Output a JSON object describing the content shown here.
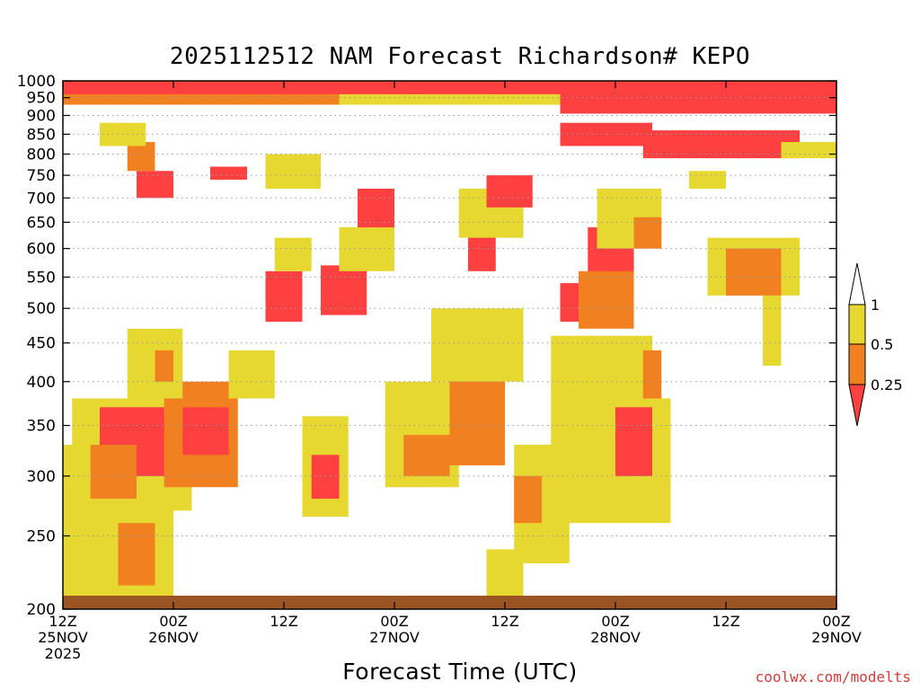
{
  "title": "2025112512 NAM Forecast Richardson# KEPO",
  "x_axis_title": "Forecast Time (UTC)",
  "credit": "coolwx.com/modelts",
  "colors": {
    "low": "#ff4040",
    "mid": "#f08020",
    "high": "#e6d830",
    "ground": "#9b5424",
    "grid": "#999999"
  },
  "chart_data": {
    "type": "heatmap",
    "title": "2025112512 NAM Forecast Richardson# KEPO",
    "xlabel": "Forecast Time (UTC)",
    "ylabel": "",
    "y_scale": "log",
    "y_inverted": true,
    "ylim": [
      1000,
      200
    ],
    "xlim": [
      "2025-11-25 12Z",
      "2025-11-29 00Z"
    ],
    "x_tick_labels": [
      {
        "line1": "12Z",
        "line2": "25NOV",
        "line3": "2025"
      },
      {
        "line1": "00Z",
        "line2": "26NOV",
        "line3": ""
      },
      {
        "line1": "12Z",
        "line2": "",
        "line3": ""
      },
      {
        "line1": "00Z",
        "line2": "27NOV",
        "line3": ""
      },
      {
        "line1": "12Z",
        "line2": "",
        "line3": ""
      },
      {
        "line1": "00Z",
        "line2": "28NOV",
        "line3": ""
      },
      {
        "line1": "12Z",
        "line2": "",
        "line3": ""
      },
      {
        "line1": "00Z",
        "line2": "29NOV",
        "line3": ""
      }
    ],
    "y_ticks": [
      200,
      250,
      300,
      350,
      400,
      450,
      500,
      550,
      600,
      650,
      700,
      750,
      800,
      850,
      900,
      950,
      1000
    ],
    "legend": {
      "bounds": [
        "0.25",
        "0.5",
        "1"
      ],
      "bins": [
        {
          "range": "< 0.25",
          "color_key": "low"
        },
        {
          "range": "0.25 - 0.5",
          "color_key": "mid"
        },
        {
          "range": "0.5 - 1",
          "color_key": "high"
        }
      ]
    },
    "hours": [
      0,
      3,
      6,
      9,
      12,
      15,
      18,
      21,
      24,
      27,
      30,
      33,
      36,
      39,
      42,
      45,
      48,
      51,
      54,
      57,
      60,
      63,
      66,
      69,
      72,
      75,
      78,
      81
    ],
    "regions": [
      {
        "cat": "high",
        "h": [
          0,
          12
        ],
        "p": [
          200,
          330
        ]
      },
      {
        "cat": "mid",
        "h": [
          6,
          10
        ],
        "p": [
          215,
          260
        ]
      },
      {
        "cat": "high",
        "h": [
          1,
          14
        ],
        "p": [
          270,
          380
        ]
      },
      {
        "cat": "low",
        "h": [
          4,
          15
        ],
        "p": [
          300,
          370
        ]
      },
      {
        "cat": "mid",
        "h": [
          3,
          8
        ],
        "p": [
          280,
          330
        ]
      },
      {
        "cat": "mid",
        "h": [
          11,
          19
        ],
        "p": [
          290,
          400
        ]
      },
      {
        "cat": "low",
        "h": [
          13,
          18
        ],
        "p": [
          320,
          370
        ]
      },
      {
        "cat": "high",
        "h": [
          7,
          13
        ],
        "p": [
          380,
          470
        ]
      },
      {
        "cat": "mid",
        "h": [
          10,
          12
        ],
        "p": [
          400,
          440
        ]
      },
      {
        "cat": "high",
        "h": [
          26,
          31
        ],
        "p": [
          265,
          360
        ]
      },
      {
        "cat": "low",
        "h": [
          27,
          30
        ],
        "p": [
          280,
          320
        ]
      },
      {
        "cat": "high",
        "h": [
          35,
          43
        ],
        "p": [
          290,
          400
        ]
      },
      {
        "cat": "mid",
        "h": [
          37,
          42
        ],
        "p": [
          300,
          340
        ]
      },
      {
        "cat": "high",
        "h": [
          46,
          50
        ],
        "p": [
          200,
          240
        ]
      },
      {
        "cat": "high",
        "h": [
          49,
          55
        ],
        "p": [
          230,
          330
        ]
      },
      {
        "cat": "mid",
        "h": [
          49,
          52
        ],
        "p": [
          260,
          300
        ]
      },
      {
        "cat": "high",
        "h": [
          53,
          64
        ],
        "p": [
          330,
          460
        ]
      },
      {
        "cat": "low",
        "h": [
          54,
          57
        ],
        "p": [
          480,
          540
        ]
      },
      {
        "cat": "low",
        "h": [
          57,
          62
        ],
        "p": [
          530,
          640
        ]
      },
      {
        "cat": "mid",
        "h": [
          56,
          62
        ],
        "p": [
          470,
          560
        ]
      },
      {
        "cat": "high",
        "h": [
          58,
          65
        ],
        "p": [
          600,
          720
        ]
      },
      {
        "cat": "mid",
        "h": [
          62,
          65
        ],
        "p": [
          600,
          660
        ]
      },
      {
        "cat": "high",
        "h": [
          54,
          66
        ],
        "p": [
          260,
          380
        ]
      },
      {
        "cat": "low",
        "h": [
          60,
          64
        ],
        "p": [
          300,
          370
        ]
      },
      {
        "cat": "mid",
        "h": [
          63,
          65
        ],
        "p": [
          380,
          440
        ]
      },
      {
        "cat": "high",
        "h": [
          70,
          80
        ],
        "p": [
          520,
          620
        ]
      },
      {
        "cat": "mid",
        "h": [
          72,
          78
        ],
        "p": [
          520,
          600
        ]
      },
      {
        "cat": "high",
        "h": [
          76,
          78
        ],
        "p": [
          420,
          520
        ]
      },
      {
        "cat": "high",
        "h": [
          18,
          23
        ],
        "p": [
          380,
          440
        ]
      },
      {
        "cat": "mid",
        "h": [
          42,
          48
        ],
        "p": [
          310,
          420
        ]
      },
      {
        "cat": "high",
        "h": [
          40,
          50
        ],
        "p": [
          400,
          500
        ]
      },
      {
        "cat": "low",
        "h": [
          44,
          47
        ],
        "p": [
          560,
          640
        ]
      },
      {
        "cat": "high",
        "h": [
          43,
          50
        ],
        "p": [
          620,
          720
        ]
      },
      {
        "cat": "low",
        "h": [
          46,
          51
        ],
        "p": [
          680,
          750
        ]
      },
      {
        "cat": "low",
        "h": [
          28,
          33
        ],
        "p": [
          490,
          570
        ]
      },
      {
        "cat": "high",
        "h": [
          30,
          36
        ],
        "p": [
          560,
          640
        ]
      },
      {
        "cat": "low",
        "h": [
          32,
          36
        ],
        "p": [
          640,
          720
        ]
      },
      {
        "cat": "low",
        "h": [
          22,
          26
        ],
        "p": [
          480,
          560
        ]
      },
      {
        "cat": "high",
        "h": [
          23,
          27
        ],
        "p": [
          560,
          620
        ]
      },
      {
        "cat": "low",
        "h": [
          8,
          12
        ],
        "p": [
          700,
          760
        ]
      },
      {
        "cat": "mid",
        "h": [
          7,
          10
        ],
        "p": [
          760,
          830
        ]
      },
      {
        "cat": "high",
        "h": [
          4,
          9
        ],
        "p": [
          820,
          880
        ]
      },
      {
        "cat": "low",
        "h": [
          16,
          20
        ],
        "p": [
          740,
          770
        ]
      },
      {
        "cat": "high",
        "h": [
          22,
          28
        ],
        "p": [
          720,
          800
        ]
      },
      {
        "cat": "low",
        "h": [
          54,
          64
        ],
        "p": [
          820,
          880
        ]
      },
      {
        "cat": "low",
        "h": [
          63,
          80
        ],
        "p": [
          790,
          860
        ]
      },
      {
        "cat": "high",
        "h": [
          68,
          72
        ],
        "p": [
          720,
          760
        ]
      },
      {
        "cat": "high",
        "h": [
          78,
          84
        ],
        "p": [
          790,
          830
        ]
      }
    ],
    "surface_layer": [
      {
        "cat": "low",
        "h": [
          0,
          84
        ],
        "p": [
          955,
          1000
        ]
      },
      {
        "cat": "mid",
        "h": [
          0,
          30
        ],
        "p": [
          930,
          960
        ]
      },
      {
        "cat": "high",
        "h": [
          30,
          54
        ],
        "p": [
          930,
          960
        ]
      },
      {
        "cat": "low",
        "h": [
          54,
          84
        ],
        "p": [
          905,
          960
        ]
      }
    ]
  }
}
